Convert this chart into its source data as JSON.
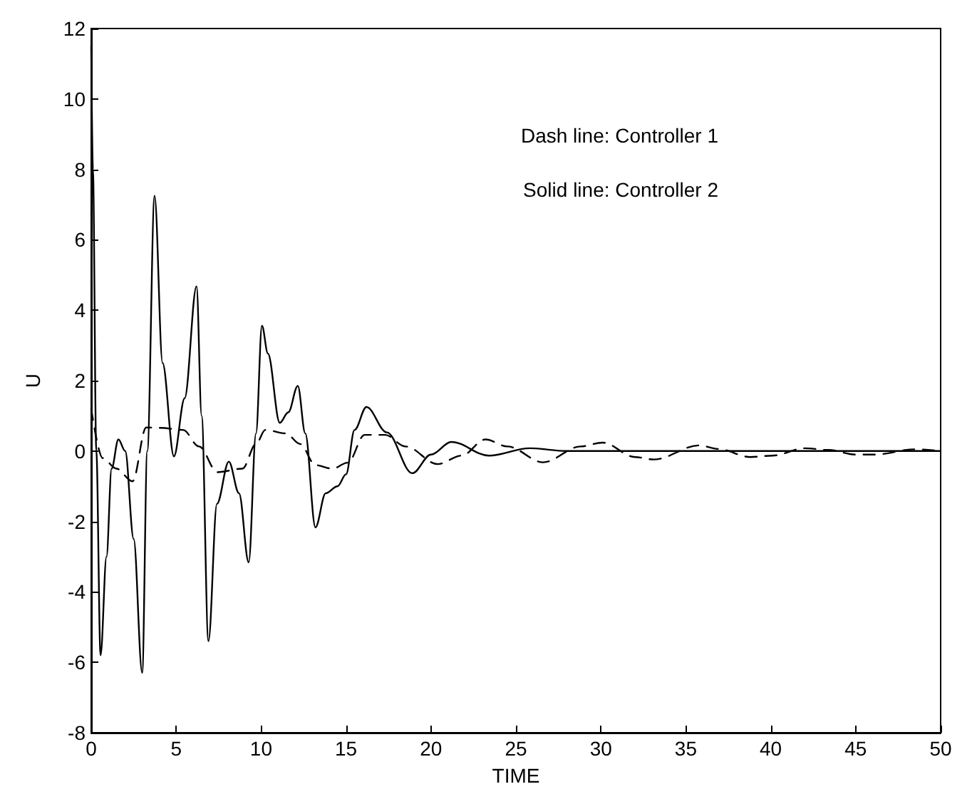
{
  "chart_data": {
    "type": "line",
    "xlabel": "TIME",
    "ylabel": "U",
    "annotations": [
      "Dash line: Controller 1",
      "Solid line: Controller 2"
    ],
    "series": [
      {
        "color": "#000000",
        "line_style": "dashed",
        "x": [
          0,
          0.67,
          1.48,
          2.43,
          3.24,
          4.05,
          5.4,
          6.35,
          7.43,
          8.9,
          9.7,
          10.25,
          11.46,
          12.3,
          13.2,
          14.2,
          15.1,
          16.1,
          17.3,
          18.5,
          20.4,
          21.8,
          23.2,
          24.5,
          26.6,
          28.8,
          30.1,
          32.0,
          33.1,
          35.8,
          36.9,
          38.8,
          40.1,
          42.0,
          43.4,
          45.0,
          46.1,
          48.5,
          50
        ],
        "values": [
          1.2,
          -0.2,
          -0.5,
          -0.86,
          0.67,
          0.66,
          0.6,
          0.13,
          -0.6,
          -0.5,
          0.2,
          0.6,
          0.5,
          0.2,
          -0.4,
          -0.5,
          -0.33,
          0.46,
          0.46,
          0.13,
          -0.37,
          -0.13,
          0.33,
          0.13,
          -0.32,
          0.13,
          0.24,
          -0.17,
          -0.24,
          0.16,
          0.06,
          -0.17,
          -0.13,
          0.08,
          0.03,
          -0.1,
          -0.1,
          0.05,
          0
        ]
      },
      {
        "color": "#000000",
        "line_style": "solid",
        "x": [
          0,
          0.1,
          0.3,
          0.55,
          0.9,
          1.2,
          1.6,
          2.0,
          2.5,
          3.0,
          3.3,
          3.73,
          4.2,
          4.87,
          5.5,
          6.2,
          6.5,
          6.9,
          7.4,
          8.1,
          8.7,
          9.27,
          9.7,
          10.05,
          10.4,
          11.1,
          11.6,
          12.16,
          12.6,
          13.2,
          13.8,
          14.5,
          15.0,
          15.5,
          16.2,
          17.4,
          18.9,
          20,
          21.2,
          23.4,
          25.8,
          28,
          30,
          35,
          40,
          45,
          50
        ],
        "values": [
          11.5,
          8,
          0,
          -5.8,
          -3,
          -0.5,
          0.33,
          0,
          -2.5,
          -6.3,
          0,
          7.25,
          2.5,
          -0.15,
          1.5,
          4.68,
          1,
          -5.4,
          -1.5,
          -0.3,
          -1.2,
          -3.16,
          0.5,
          3.56,
          2.77,
          0.8,
          1.1,
          1.85,
          0.5,
          -2.17,
          -1.2,
          -1.0,
          -0.66,
          0.6,
          1.25,
          0.53,
          -0.63,
          -0.1,
          0.26,
          -0.13,
          0.08,
          0,
          0,
          0,
          0,
          0,
          0
        ]
      }
    ],
    "xlim": [
      0,
      50
    ],
    "xticks": [
      0,
      5,
      10,
      15,
      20,
      25,
      30,
      35,
      40,
      45,
      50
    ],
    "ylim": [
      -8,
      12
    ],
    "yticks": [
      -8,
      -6,
      -4,
      -2,
      0,
      2,
      4,
      6,
      8,
      10,
      12
    ],
    "grid": false,
    "marker": "none"
  }
}
